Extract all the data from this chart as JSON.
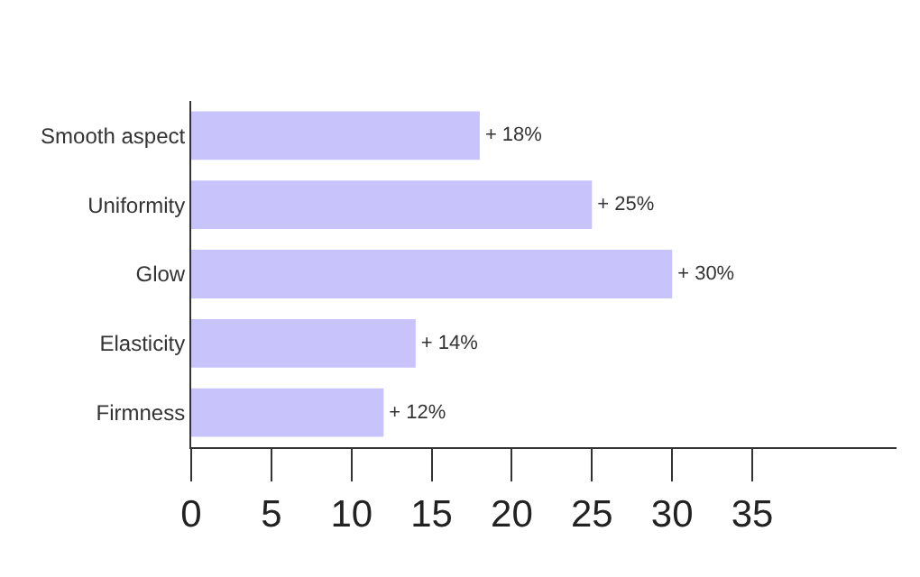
{
  "chart_data": {
    "type": "bar",
    "orientation": "horizontal",
    "categories": [
      "Smooth aspect",
      "Uniformity",
      "Glow",
      "Elasticity",
      "Firmness"
    ],
    "values": [
      18,
      25,
      30,
      14,
      12
    ],
    "value_labels": [
      "+ 18%",
      "+ 25%",
      "+ 30%",
      "+ 14%",
      "+ 12%"
    ],
    "color": "#c8c3fb",
    "xlim": [
      0,
      44
    ],
    "xticks": [
      0,
      5,
      10,
      15,
      20,
      25,
      30,
      35
    ],
    "grid": false
  }
}
